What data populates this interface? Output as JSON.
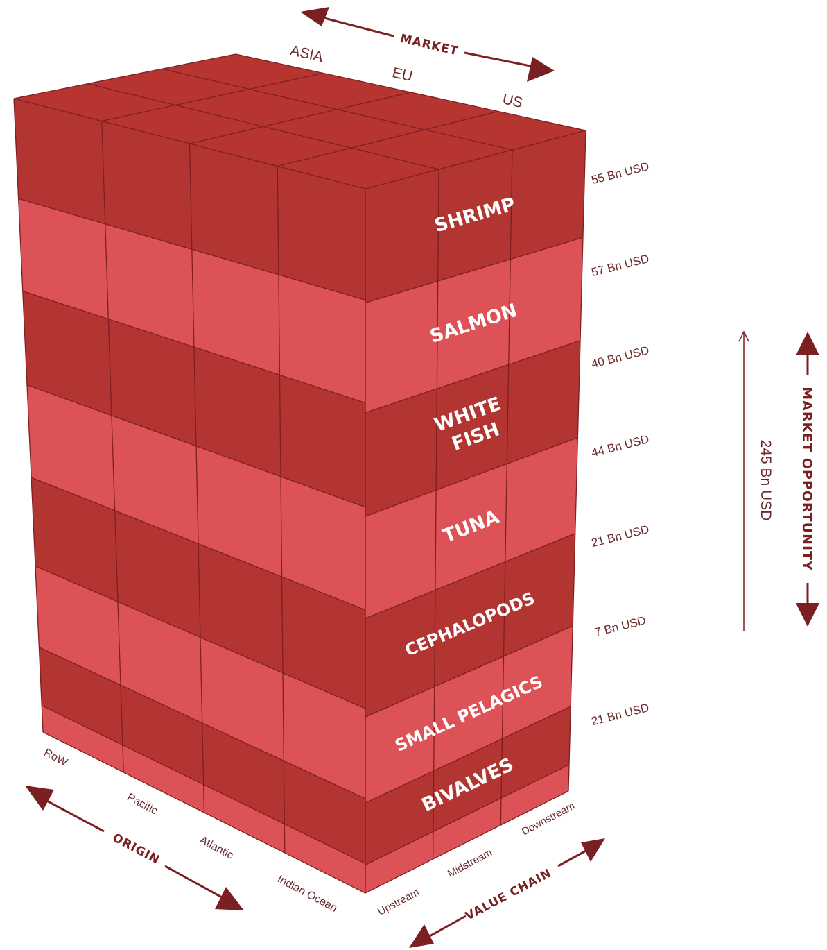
{
  "market": {
    "title": "MARKET",
    "columns": [
      "ASIA",
      "EU",
      "US"
    ]
  },
  "origin": {
    "title": "ORIGIN",
    "labels": [
      "RoW",
      "Pacific",
      "Atlantic",
      "Indian Ocean"
    ]
  },
  "value_chain": {
    "title": "VALUE CHAIN",
    "labels": [
      "Upstream",
      "Midstream",
      "Downstream"
    ]
  },
  "market_opportunity": {
    "title": "MARKET OPPORTUNITY",
    "total": "245 Bn USD"
  },
  "categories": [
    {
      "line1": "SHRIMP",
      "line2": "",
      "value": "55 Bn USD"
    },
    {
      "line1": "SALMON",
      "line2": "",
      "value": "57 Bn USD"
    },
    {
      "line1": "WHITE",
      "line2": "FISH",
      "value": "40 Bn USD"
    },
    {
      "line1": "TUNA",
      "line2": "",
      "value": "44 Bn USD"
    },
    {
      "line1": "CEPHALOPODS",
      "line2": "",
      "value": "21 Bn USD"
    },
    {
      "line1": "SMALL PELAGICS",
      "line2": "",
      "value": "7 Bn USD"
    },
    {
      "line1": "BIVALVES",
      "line2": "",
      "value": "21 Bn USD"
    }
  ],
  "colors": {
    "dark": "#b23532",
    "light": "#dc5256",
    "top": "#b73531",
    "line": "#7e1f22",
    "arrow": "#7a1f22"
  }
}
